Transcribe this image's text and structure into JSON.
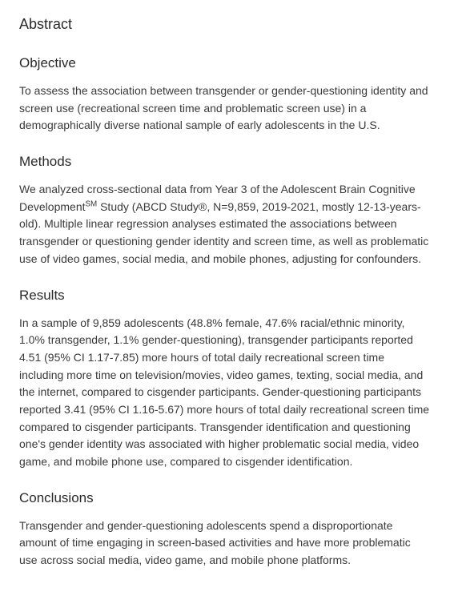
{
  "abstract": {
    "title": "Abstract",
    "sections": {
      "objective": {
        "heading": "Objective",
        "text": "To assess the association between transgender or gender-questioning identity and screen use (recreational screen time and problematic screen use) in a demographically diverse national sample of early adolescents in the U.S."
      },
      "methods": {
        "heading": "Methods",
        "text_pre": "We analyzed cross-sectional data from Year 3 of the Adolescent Brain Cognitive Development",
        "sup": "SM",
        "text_post": " Study (ABCD Study®, N=9,859, 2019-2021, mostly 12-13-years-old). Multiple linear regression analyses estimated the associations between transgender or questioning gender identity and screen time, as well as problematic use of video games, social media, and mobile phones, adjusting for confounders."
      },
      "results": {
        "heading": "Results",
        "text": "In a sample of 9,859 adolescents (48.8% female, 47.6% racial/ethnic minority, 1.0% transgender, 1.1% gender-questioning), transgender participants reported 4.51 (95% CI 1.17-7.85) more hours of total daily recreational screen time including more time on television/movies, video games, texting, social media, and the internet, compared to cisgender participants. Gender-questioning participants reported 3.41 (95% CI 1.16-5.67) more hours of total daily recreational screen time compared to cisgender participants. Transgender identification and questioning one's gender identity was associated with higher problematic social media, video game, and mobile phone use, compared to cisgender identification."
      },
      "conclusions": {
        "heading": "Conclusions",
        "text": "Transgender and gender-questioning adolescents spend a disproportionate amount of time engaging in screen-based activities and have more problematic use across social media, video game, and mobile phone platforms."
      }
    }
  },
  "colors": {
    "text_heading": "#2a2a2a",
    "text_body": "#3a3a3a",
    "background": "#ffffff"
  },
  "typography": {
    "heading_fontsize": 18,
    "subheading_fontsize": 17,
    "body_fontsize": 14,
    "body_lineheight": 1.55
  }
}
